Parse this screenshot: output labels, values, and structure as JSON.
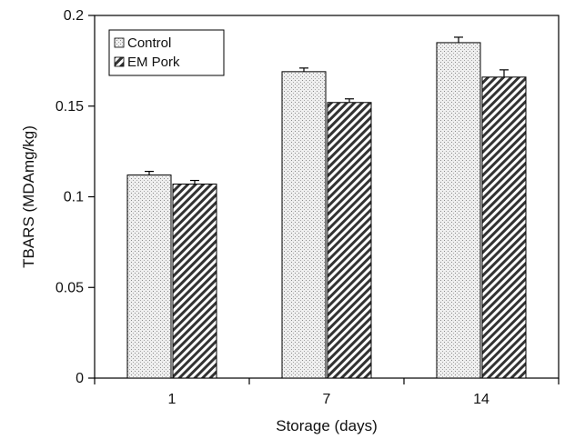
{
  "chart_data": {
    "type": "bar",
    "xlabel": "Storage (days)",
    "ylabel": "TBARS (MDAmg/kg)",
    "categories": [
      "1",
      "7",
      "14"
    ],
    "ylim": [
      0,
      0.2
    ],
    "yticks": [
      0,
      0.05,
      0.1,
      0.15,
      0.2
    ],
    "ytick_labels": [
      "0",
      "0.05",
      "0.1",
      "0.15",
      "0.2"
    ],
    "grid": false,
    "legend_position": "top-left",
    "series": [
      {
        "name": "Control",
        "values": [
          0.112,
          0.169,
          0.185
        ],
        "errors": [
          0.002,
          0.002,
          0.003
        ],
        "fill": "stippled",
        "color": "#d9d9d9"
      },
      {
        "name": "EM Pork",
        "values": [
          0.107,
          0.152,
          0.166
        ],
        "errors": [
          0.002,
          0.002,
          0.004
        ],
        "fill": "diagonal-hatch",
        "color": "#333333"
      }
    ]
  }
}
